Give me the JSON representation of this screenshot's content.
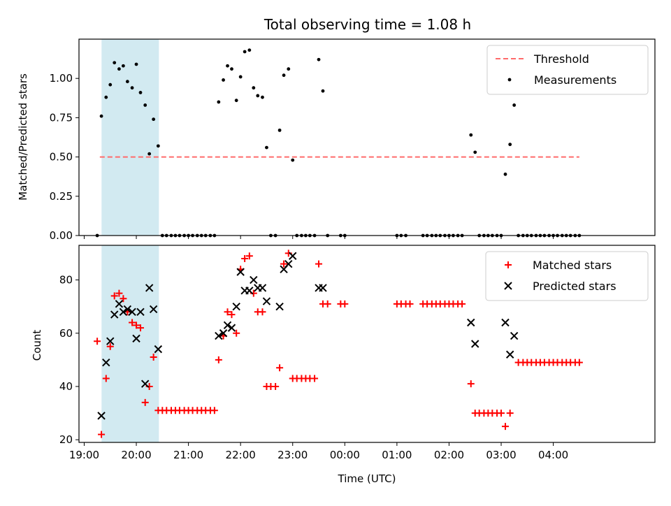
{
  "chart_data": {
    "type": "scatter",
    "title": "Total observing time = 1.08 h",
    "xlabel": "Time (UTC)",
    "x_unit": "hours after 19:00 UTC",
    "x_tick_labels": [
      "19:00",
      "20:00",
      "21:00",
      "22:00",
      "23:00",
      "00:00",
      "01:00",
      "02:00",
      "03:00",
      "04:00"
    ],
    "highlight_span": {
      "start": "19:20",
      "end": "20:26",
      "color": "#add8e6"
    },
    "panels": [
      {
        "id": "ratio",
        "ylabel": "Matched/Predicted stars",
        "ylim": [
          0,
          1.25
        ],
        "y_ticks": [
          "0.00",
          "0.25",
          "0.50",
          "0.75",
          "1.00"
        ],
        "legend_position": "top-right",
        "threshold": {
          "name": "Threshold",
          "value": 0.5,
          "x_range": [
            19.3,
            28.5
          ],
          "color": "#ff6b6b"
        },
        "series": [
          {
            "name": "Measurements",
            "marker": "dot",
            "color": "#000000",
            "points": [
              [
                19.25,
                0.0
              ],
              [
                19.33,
                0.76
              ],
              [
                19.42,
                0.88
              ],
              [
                19.5,
                0.96
              ],
              [
                19.58,
                1.1
              ],
              [
                19.67,
                1.06
              ],
              [
                19.75,
                1.08
              ],
              [
                19.83,
                0.98
              ],
              [
                19.92,
                0.94
              ],
              [
                20.0,
                1.09
              ],
              [
                20.08,
                0.91
              ],
              [
                20.17,
                0.83
              ],
              [
                20.25,
                0.52
              ],
              [
                20.33,
                0.74
              ],
              [
                20.42,
                0.57
              ],
              [
                20.5,
                0.0
              ],
              [
                20.58,
                0.0
              ],
              [
                20.67,
                0.0
              ],
              [
                20.75,
                0.0
              ],
              [
                20.83,
                0.0
              ],
              [
                20.92,
                0.0
              ],
              [
                21.0,
                0.0
              ],
              [
                21.08,
                0.0
              ],
              [
                21.17,
                0.0
              ],
              [
                21.25,
                0.0
              ],
              [
                21.33,
                0.0
              ],
              [
                21.42,
                0.0
              ],
              [
                21.5,
                0.0
              ],
              [
                21.58,
                0.85
              ],
              [
                21.67,
                0.99
              ],
              [
                21.75,
                1.08
              ],
              [
                21.83,
                1.06
              ],
              [
                21.92,
                0.86
              ],
              [
                22.0,
                1.01
              ],
              [
                22.08,
                1.17
              ],
              [
                22.17,
                1.18
              ],
              [
                22.25,
                0.94
              ],
              [
                22.33,
                0.89
              ],
              [
                22.42,
                0.88
              ],
              [
                22.5,
                0.56
              ],
              [
                22.58,
                0.0
              ],
              [
                22.67,
                0.0
              ],
              [
                22.75,
                0.67
              ],
              [
                22.83,
                1.02
              ],
              [
                22.92,
                1.06
              ],
              [
                23.0,
                0.48
              ],
              [
                23.08,
                0.0
              ],
              [
                23.17,
                0.0
              ],
              [
                23.25,
                0.0
              ],
              [
                23.33,
                0.0
              ],
              [
                23.42,
                0.0
              ],
              [
                23.5,
                1.12
              ],
              [
                23.58,
                0.92
              ],
              [
                23.67,
                0.0
              ],
              [
                23.92,
                0.0
              ],
              [
                24.0,
                0.0
              ],
              [
                25.0,
                0.0
              ],
              [
                25.08,
                0.0
              ],
              [
                25.17,
                0.0
              ],
              [
                25.5,
                0.0
              ],
              [
                25.58,
                0.0
              ],
              [
                25.67,
                0.0
              ],
              [
                25.75,
                0.0
              ],
              [
                25.83,
                0.0
              ],
              [
                25.92,
                0.0
              ],
              [
                26.0,
                0.0
              ],
              [
                26.08,
                0.0
              ],
              [
                26.17,
                0.0
              ],
              [
                26.25,
                0.0
              ],
              [
                26.42,
                0.64
              ],
              [
                26.5,
                0.53
              ],
              [
                26.58,
                0.0
              ],
              [
                26.67,
                0.0
              ],
              [
                26.75,
                0.0
              ],
              [
                26.83,
                0.0
              ],
              [
                26.92,
                0.0
              ],
              [
                27.0,
                0.0
              ],
              [
                27.08,
                0.39
              ],
              [
                27.17,
                0.58
              ],
              [
                27.25,
                0.83
              ],
              [
                27.33,
                0.0
              ],
              [
                27.42,
                0.0
              ],
              [
                27.5,
                0.0
              ],
              [
                27.58,
                0.0
              ],
              [
                27.67,
                0.0
              ],
              [
                27.75,
                0.0
              ],
              [
                27.83,
                0.0
              ],
              [
                27.92,
                0.0
              ],
              [
                28.0,
                0.0
              ],
              [
                28.08,
                0.0
              ],
              [
                28.17,
                0.0
              ],
              [
                28.25,
                0.0
              ],
              [
                28.33,
                0.0
              ],
              [
                28.42,
                0.0
              ],
              [
                28.5,
                0.0
              ]
            ]
          }
        ]
      },
      {
        "id": "counts",
        "ylabel": "Count",
        "ylim": [
          19,
          93
        ],
        "y_ticks": [
          "20",
          "40",
          "60",
          "80"
        ],
        "legend_position": "top-right",
        "series": [
          {
            "name": "Matched stars",
            "marker": "plus",
            "color": "#ff0000",
            "points": [
              [
                19.25,
                57
              ],
              [
                19.33,
                22
              ],
              [
                19.42,
                43
              ],
              [
                19.5,
                55
              ],
              [
                19.58,
                74
              ],
              [
                19.67,
                75
              ],
              [
                19.75,
                73
              ],
              [
                19.83,
                68
              ],
              [
                19.92,
                64
              ],
              [
                20.0,
                63
              ],
              [
                20.08,
                62
              ],
              [
                20.17,
                34
              ],
              [
                20.25,
                40
              ],
              [
                20.33,
                51
              ],
              [
                20.42,
                31
              ],
              [
                20.5,
                31
              ],
              [
                20.58,
                31
              ],
              [
                20.67,
                31
              ],
              [
                20.75,
                31
              ],
              [
                20.83,
                31
              ],
              [
                20.92,
                31
              ],
              [
                21.0,
                31
              ],
              [
                21.08,
                31
              ],
              [
                21.17,
                31
              ],
              [
                21.25,
                31
              ],
              [
                21.33,
                31
              ],
              [
                21.42,
                31
              ],
              [
                21.5,
                31
              ],
              [
                21.58,
                50
              ],
              [
                21.67,
                59
              ],
              [
                21.75,
                68
              ],
              [
                21.83,
                67
              ],
              [
                21.92,
                60
              ],
              [
                22.0,
                84
              ],
              [
                22.08,
                88
              ],
              [
                22.17,
                89
              ],
              [
                22.25,
                75
              ],
              [
                22.33,
                68
              ],
              [
                22.42,
                68
              ],
              [
                22.5,
                40
              ],
              [
                22.58,
                40
              ],
              [
                22.67,
                40
              ],
              [
                22.75,
                47
              ],
              [
                22.83,
                86
              ],
              [
                22.92,
                90
              ],
              [
                23.0,
                43
              ],
              [
                23.08,
                43
              ],
              [
                23.17,
                43
              ],
              [
                23.25,
                43
              ],
              [
                23.33,
                43
              ],
              [
                23.42,
                43
              ],
              [
                23.5,
                86
              ],
              [
                23.58,
                71
              ],
              [
                23.67,
                71
              ],
              [
                23.92,
                71
              ],
              [
                24.0,
                71
              ],
              [
                25.0,
                71
              ],
              [
                25.08,
                71
              ],
              [
                25.17,
                71
              ],
              [
                25.25,
                71
              ],
              [
                25.5,
                71
              ],
              [
                25.58,
                71
              ],
              [
                25.67,
                71
              ],
              [
                25.75,
                71
              ],
              [
                25.83,
                71
              ],
              [
                25.92,
                71
              ],
              [
                26.0,
                71
              ],
              [
                26.08,
                71
              ],
              [
                26.17,
                71
              ],
              [
                26.25,
                71
              ],
              [
                26.42,
                41
              ],
              [
                26.5,
                30
              ],
              [
                26.58,
                30
              ],
              [
                26.67,
                30
              ],
              [
                26.75,
                30
              ],
              [
                26.83,
                30
              ],
              [
                26.92,
                30
              ],
              [
                27.0,
                30
              ],
              [
                27.08,
                25
              ],
              [
                27.17,
                30
              ],
              [
                27.33,
                49
              ],
              [
                27.42,
                49
              ],
              [
                27.5,
                49
              ],
              [
                27.58,
                49
              ],
              [
                27.67,
                49
              ],
              [
                27.75,
                49
              ],
              [
                27.83,
                49
              ],
              [
                27.92,
                49
              ],
              [
                28.0,
                49
              ],
              [
                28.08,
                49
              ],
              [
                28.17,
                49
              ],
              [
                28.25,
                49
              ],
              [
                28.33,
                49
              ],
              [
                28.42,
                49
              ],
              [
                28.5,
                49
              ]
            ]
          },
          {
            "name": "Predicted stars",
            "marker": "x",
            "color": "#000000",
            "points": [
              [
                19.33,
                29
              ],
              [
                19.42,
                49
              ],
              [
                19.5,
                57
              ],
              [
                19.58,
                67
              ],
              [
                19.67,
                71
              ],
              [
                19.75,
                68
              ],
              [
                19.83,
                69
              ],
              [
                19.92,
                68
              ],
              [
                20.0,
                58
              ],
              [
                20.08,
                68
              ],
              [
                20.17,
                41
              ],
              [
                20.25,
                77
              ],
              [
                20.33,
                69
              ],
              [
                20.42,
                54
              ],
              [
                21.58,
                59
              ],
              [
                21.67,
                60
              ],
              [
                21.75,
                63
              ],
              [
                21.83,
                62
              ],
              [
                21.92,
                70
              ],
              [
                22.0,
                83
              ],
              [
                22.08,
                76
              ],
              [
                22.17,
                76
              ],
              [
                22.25,
                80
              ],
              [
                22.33,
                77
              ],
              [
                22.42,
                77
              ],
              [
                22.5,
                72
              ],
              [
                22.75,
                70
              ],
              [
                22.83,
                84
              ],
              [
                22.92,
                86
              ],
              [
                23.0,
                89
              ],
              [
                23.5,
                77
              ],
              [
                23.58,
                77
              ],
              [
                26.42,
                64
              ],
              [
                26.5,
                56
              ],
              [
                27.08,
                64
              ],
              [
                27.17,
                52
              ],
              [
                27.25,
                59
              ]
            ]
          }
        ]
      }
    ]
  }
}
